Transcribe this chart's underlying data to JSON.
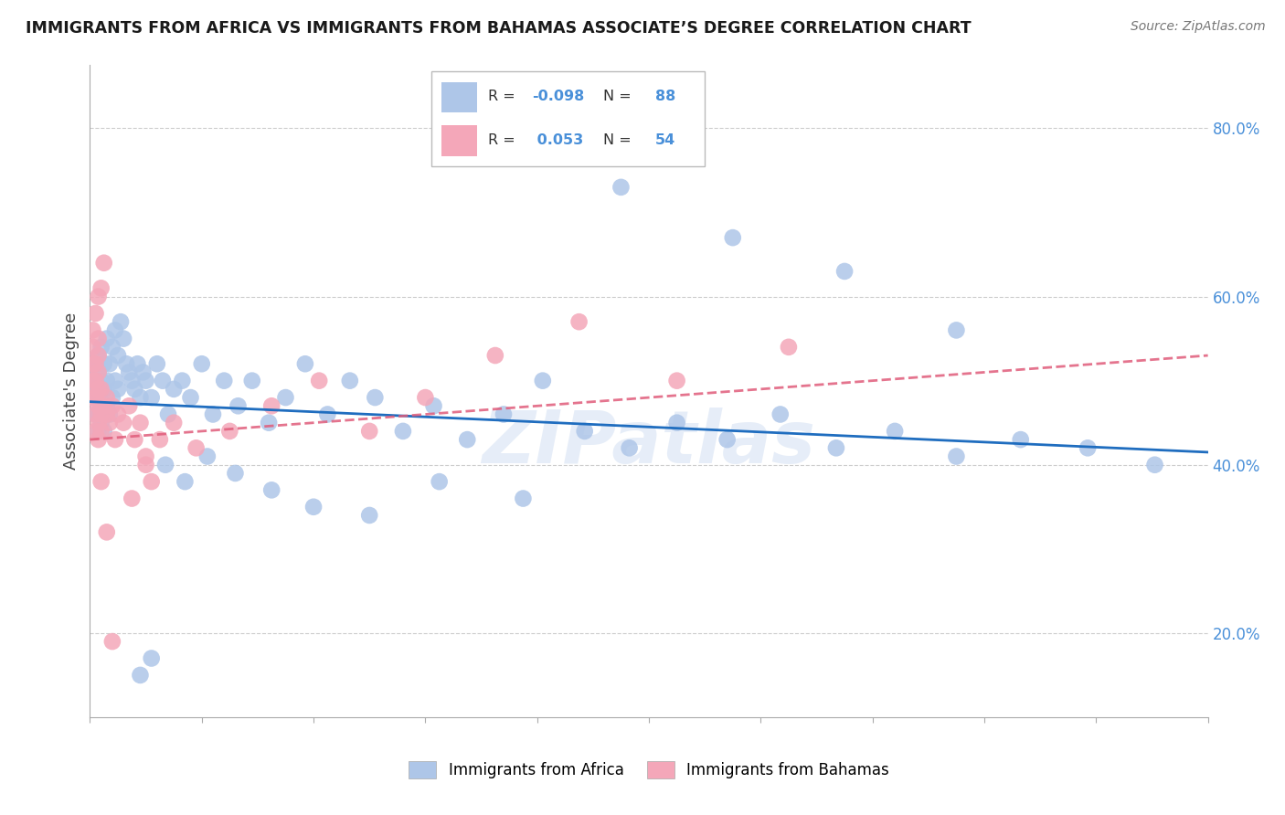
{
  "title": "IMMIGRANTS FROM AFRICA VS IMMIGRANTS FROM BAHAMAS ASSOCIATE’S DEGREE CORRELATION CHART",
  "source_text": "Source: ZipAtlas.com",
  "ylabel": "Associate's Degree",
  "watermark": "ZIPatlas",
  "xlim": [
    0.0,
    0.4
  ],
  "ylim": [
    0.1,
    0.875
  ],
  "ytick_labels": [
    "20.0%",
    "40.0%",
    "60.0%",
    "80.0%"
  ],
  "yticks": [
    0.2,
    0.4,
    0.6,
    0.8
  ],
  "africa_R": -0.098,
  "africa_N": 88,
  "bahamas_R": 0.053,
  "bahamas_N": 54,
  "africa_color": "#aec6e8",
  "africa_line_color": "#1f6dbf",
  "bahamas_color": "#f4a7b9",
  "bahamas_line_color": "#e05c7a",
  "background_color": "#ffffff",
  "grid_color": "#cccccc",
  "africa_x": [
    0.001,
    0.001,
    0.002,
    0.002,
    0.002,
    0.003,
    0.003,
    0.003,
    0.003,
    0.003,
    0.004,
    0.004,
    0.004,
    0.004,
    0.005,
    0.005,
    0.005,
    0.005,
    0.006,
    0.006,
    0.006,
    0.007,
    0.007,
    0.008,
    0.008,
    0.009,
    0.009,
    0.01,
    0.01,
    0.011,
    0.012,
    0.013,
    0.014,
    0.015,
    0.016,
    0.017,
    0.018,
    0.019,
    0.02,
    0.022,
    0.024,
    0.026,
    0.028,
    0.03,
    0.033,
    0.036,
    0.04,
    0.044,
    0.048,
    0.053,
    0.058,
    0.064,
    0.07,
    0.077,
    0.085,
    0.093,
    0.102,
    0.112,
    0.123,
    0.135,
    0.148,
    0.162,
    0.177,
    0.193,
    0.21,
    0.228,
    0.247,
    0.267,
    0.288,
    0.31,
    0.333,
    0.357,
    0.381,
    0.31,
    0.27,
    0.23,
    0.19,
    0.155,
    0.125,
    0.1,
    0.08,
    0.065,
    0.052,
    0.042,
    0.034,
    0.027,
    0.022,
    0.018
  ],
  "africa_y": [
    0.48,
    0.5,
    0.46,
    0.49,
    0.52,
    0.44,
    0.46,
    0.48,
    0.51,
    0.53,
    0.45,
    0.47,
    0.5,
    0.54,
    0.44,
    0.46,
    0.49,
    0.52,
    0.47,
    0.5,
    0.55,
    0.46,
    0.52,
    0.48,
    0.54,
    0.5,
    0.56,
    0.49,
    0.53,
    0.57,
    0.55,
    0.52,
    0.51,
    0.5,
    0.49,
    0.52,
    0.48,
    0.51,
    0.5,
    0.48,
    0.52,
    0.5,
    0.46,
    0.49,
    0.5,
    0.48,
    0.52,
    0.46,
    0.5,
    0.47,
    0.5,
    0.45,
    0.48,
    0.52,
    0.46,
    0.5,
    0.48,
    0.44,
    0.47,
    0.43,
    0.46,
    0.5,
    0.44,
    0.42,
    0.45,
    0.43,
    0.46,
    0.42,
    0.44,
    0.41,
    0.43,
    0.42,
    0.4,
    0.56,
    0.63,
    0.67,
    0.73,
    0.36,
    0.38,
    0.34,
    0.35,
    0.37,
    0.39,
    0.41,
    0.38,
    0.4,
    0.17,
    0.15
  ],
  "bahamas_x": [
    0.001,
    0.001,
    0.001,
    0.001,
    0.001,
    0.002,
    0.002,
    0.002,
    0.002,
    0.002,
    0.002,
    0.003,
    0.003,
    0.003,
    0.003,
    0.003,
    0.003,
    0.003,
    0.003,
    0.004,
    0.004,
    0.004,
    0.004,
    0.005,
    0.005,
    0.006,
    0.006,
    0.007,
    0.008,
    0.009,
    0.01,
    0.012,
    0.014,
    0.016,
    0.018,
    0.02,
    0.025,
    0.03,
    0.038,
    0.05,
    0.065,
    0.082,
    0.1,
    0.12,
    0.145,
    0.175,
    0.21,
    0.25,
    0.02,
    0.022,
    0.015,
    0.008,
    0.006,
    0.004
  ],
  "bahamas_y": [
    0.48,
    0.5,
    0.52,
    0.54,
    0.56,
    0.44,
    0.46,
    0.48,
    0.5,
    0.52,
    0.58,
    0.43,
    0.45,
    0.47,
    0.49,
    0.51,
    0.53,
    0.55,
    0.6,
    0.44,
    0.46,
    0.49,
    0.61,
    0.47,
    0.64,
    0.46,
    0.48,
    0.45,
    0.47,
    0.43,
    0.46,
    0.45,
    0.47,
    0.43,
    0.45,
    0.41,
    0.43,
    0.45,
    0.42,
    0.44,
    0.47,
    0.5,
    0.44,
    0.48,
    0.53,
    0.57,
    0.5,
    0.54,
    0.4,
    0.38,
    0.36,
    0.19,
    0.32,
    0.38
  ]
}
